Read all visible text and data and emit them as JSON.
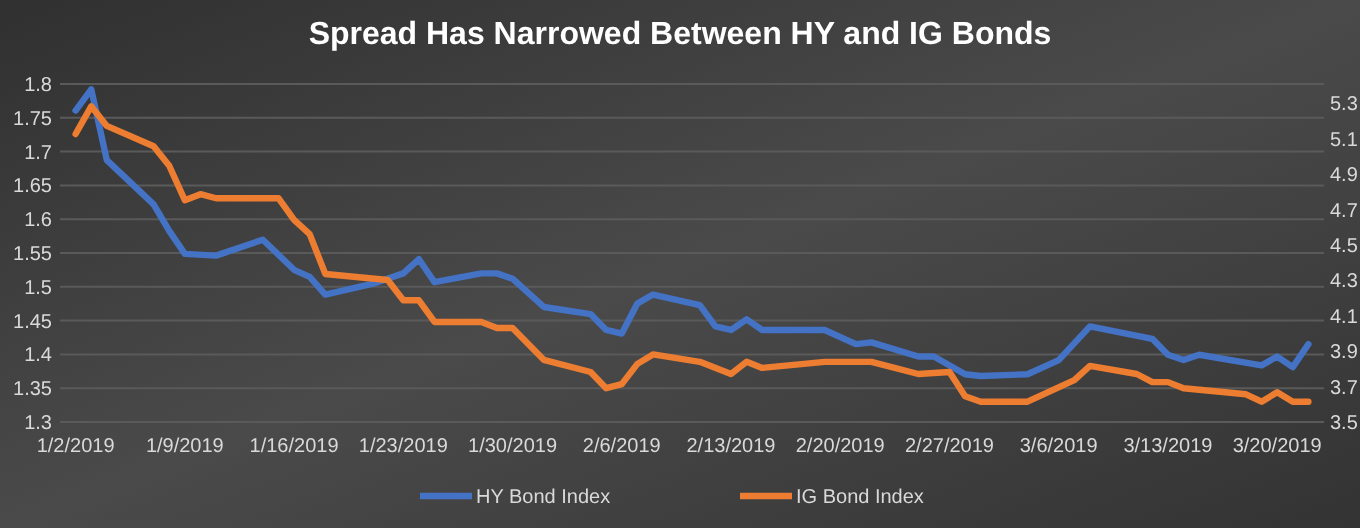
{
  "chart_data": {
    "type": "line",
    "title": "Spread Has Narrowed Between HY and IG Bonds",
    "x": [
      "2019-01-02",
      "2019-01-03",
      "2019-01-04",
      "2019-01-07",
      "2019-01-08",
      "2019-01-09",
      "2019-01-11",
      "2019-01-14",
      "2019-01-16",
      "2019-01-17",
      "2019-01-18",
      "2019-01-21",
      "2019-01-23",
      "2019-01-24",
      "2019-01-25",
      "2019-01-28",
      "2019-01-29",
      "2019-01-30",
      "2019-02-01",
      "2019-02-04",
      "2019-02-05",
      "2019-02-06",
      "2019-02-07",
      "2019-02-08",
      "2019-02-11",
      "2019-02-12",
      "2019-02-13",
      "2019-02-14",
      "2019-02-15",
      "2019-02-19",
      "2019-02-21",
      "2019-02-22",
      "2019-02-25",
      "2019-02-26",
      "2019-02-28",
      "2019-03-01",
      "2019-03-04",
      "2019-03-06",
      "2019-03-08",
      "2019-03-12",
      "2019-03-13",
      "2019-03-14",
      "2019-03-15",
      "2019-03-19",
      "2019-03-20",
      "2019-03-21",
      "2019-03-22"
    ],
    "series": [
      {
        "name": "HY Bond Index",
        "color": "#4472c4",
        "axis": "y2",
        "values": [
          5.26,
          5.38,
          4.98,
          4.73,
          4.58,
          4.45,
          4.44,
          4.53,
          4.36,
          4.32,
          4.22,
          4.28,
          4.34,
          4.42,
          4.29,
          4.34,
          4.34,
          4.31,
          4.15,
          4.11,
          4.02,
          4.0,
          4.17,
          4.22,
          4.16,
          4.04,
          4.02,
          4.08,
          4.02,
          4.02,
          3.94,
          3.95,
          3.87,
          3.87,
          3.77,
          3.76,
          3.77,
          3.85,
          4.04,
          3.97,
          3.88,
          3.85,
          3.88,
          3.82,
          3.87,
          3.81,
          3.94
        ]
      },
      {
        "name": "IG Bond Index",
        "color": "#ed7d31",
        "axis": "y",
        "x": [
          "2019-01-02",
          "2019-01-03",
          "2019-01-04",
          "2019-01-07",
          "2019-01-08",
          "2019-01-09",
          "2019-01-10",
          "2019-01-11",
          "2019-01-15",
          "2019-01-16",
          "2019-01-17",
          "2019-01-18",
          "2019-01-22",
          "2019-01-23",
          "2019-01-24",
          "2019-01-25",
          "2019-01-28",
          "2019-01-29",
          "2019-01-30",
          "2019-02-01",
          "2019-02-04",
          "2019-02-05",
          "2019-02-06",
          "2019-02-07",
          "2019-02-08",
          "2019-02-11",
          "2019-02-13",
          "2019-02-14",
          "2019-02-15",
          "2019-02-19",
          "2019-02-22",
          "2019-02-25",
          "2019-02-27",
          "2019-02-28",
          "2019-03-01",
          "2019-03-04",
          "2019-03-07",
          "2019-03-08",
          "2019-03-11",
          "2019-03-12",
          "2019-03-13",
          "2019-03-14",
          "2019-03-18",
          "2019-03-19",
          "2019-03-20",
          "2019-03-21",
          "2019-03-22"
        ],
        "values": [
          1.726,
          1.767,
          1.738,
          1.708,
          1.679,
          1.628,
          1.637,
          1.631,
          1.631,
          1.599,
          1.578,
          1.519,
          1.51,
          1.48,
          1.48,
          1.448,
          1.448,
          1.439,
          1.439,
          1.392,
          1.374,
          1.35,
          1.356,
          1.386,
          1.4,
          1.389,
          1.371,
          1.389,
          1.38,
          1.389,
          1.389,
          1.371,
          1.374,
          1.338,
          1.33,
          1.33,
          1.362,
          1.383,
          1.371,
          1.359,
          1.359,
          1.35,
          1.341,
          1.33,
          1.344,
          1.33,
          1.33
        ]
      }
    ],
    "xlim": [
      "2019-01-01",
      "2019-03-23"
    ],
    "xticks": [
      {
        "value": "2019-01-02",
        "label": "1/2/2019"
      },
      {
        "value": "2019-01-09",
        "label": "1/9/2019"
      },
      {
        "value": "2019-01-16",
        "label": "1/16/2019"
      },
      {
        "value": "2019-01-23",
        "label": "1/23/2019"
      },
      {
        "value": "2019-01-30",
        "label": "1/30/2019"
      },
      {
        "value": "2019-02-06",
        "label": "2/6/2019"
      },
      {
        "value": "2019-02-13",
        "label": "2/13/2019"
      },
      {
        "value": "2019-02-20",
        "label": "2/20/2019"
      },
      {
        "value": "2019-02-27",
        "label": "2/27/2019"
      },
      {
        "value": "2019-03-06",
        "label": "3/6/2019"
      },
      {
        "value": "2019-03-13",
        "label": "3/13/2019"
      },
      {
        "value": "2019-03-20",
        "label": "3/20/2019"
      }
    ],
    "ylim": [
      1.3,
      1.8
    ],
    "yticks": [
      1.3,
      1.35,
      1.4,
      1.45,
      1.5,
      1.55,
      1.6,
      1.65,
      1.7,
      1.75,
      1.8
    ],
    "y2lim": [
      3.5,
      5.41
    ],
    "y2ticks": [
      3.5,
      3.7,
      3.9,
      4.1,
      4.3,
      4.5,
      4.7,
      4.9,
      5.1,
      5.3
    ],
    "grid": "y",
    "legend": "bottom",
    "marker": "none",
    "line_style": "solid"
  }
}
